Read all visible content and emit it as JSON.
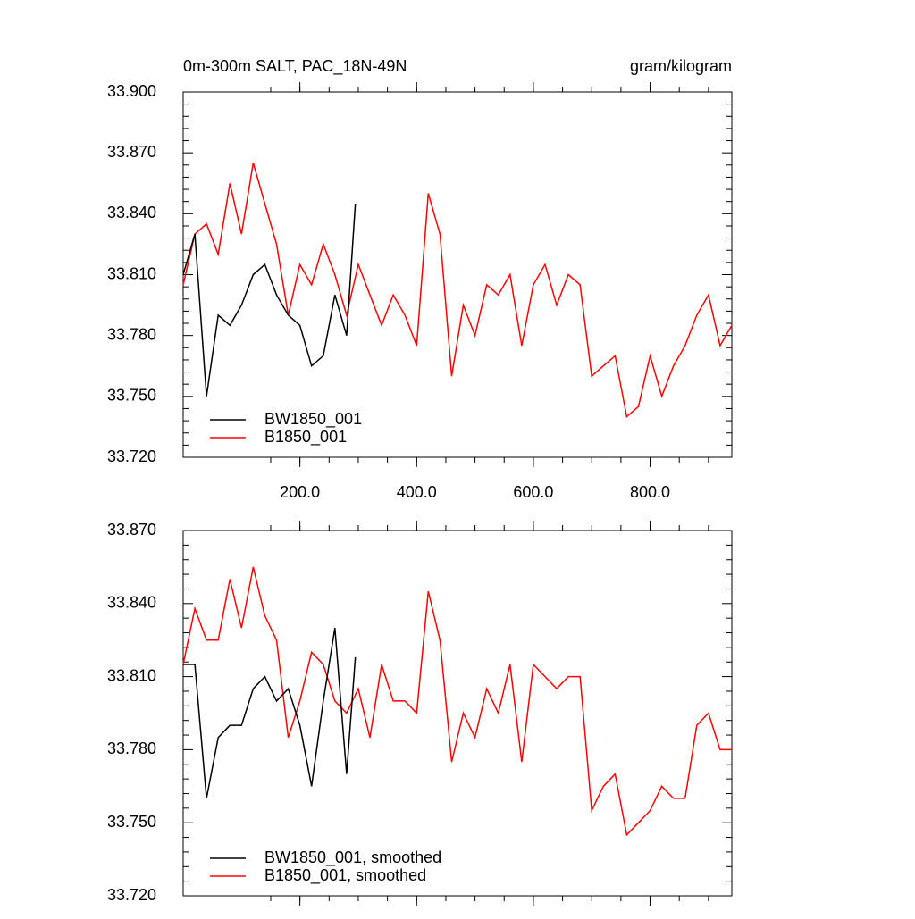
{
  "chart_data": [
    {
      "type": "line",
      "title": "0m-300m SALT, PAC_18N-49N",
      "units": "gram/kilogram",
      "xlim": [
        0,
        940
      ],
      "ylim": [
        33.72,
        33.9
      ],
      "xticks": [
        {
          "value": 200,
          "label": "200.0"
        },
        {
          "value": 400,
          "label": "400.0"
        },
        {
          "value": 600,
          "label": "600.0"
        },
        {
          "value": 800,
          "label": "800.0"
        }
      ],
      "yticks": [
        {
          "value": 33.72,
          "label": "33.720"
        },
        {
          "value": 33.75,
          "label": "33.750"
        },
        {
          "value": 33.78,
          "label": "33.780"
        },
        {
          "value": 33.81,
          "label": "33.810"
        },
        {
          "value": 33.84,
          "label": "33.840"
        },
        {
          "value": 33.87,
          "label": "33.870"
        },
        {
          "value": 33.9,
          "label": "33.900"
        }
      ],
      "legend": "lower left",
      "series": [
        {
          "name": "BW1850_001",
          "color": "#000000",
          "x": [
            0,
            20,
            40,
            60,
            80,
            100,
            120,
            140,
            160,
            180,
            200,
            220,
            240,
            260,
            280,
            295
          ],
          "values": [
            33.81,
            33.83,
            33.75,
            33.79,
            33.785,
            33.795,
            33.81,
            33.815,
            33.8,
            33.79,
            33.785,
            33.765,
            33.77,
            33.8,
            33.78,
            33.845
          ]
        },
        {
          "name": "B1850_001",
          "color": "#ff0000",
          "x": [
            0,
            20,
            40,
            60,
            80,
            100,
            120,
            140,
            160,
            180,
            200,
            220,
            240,
            260,
            280,
            300,
            320,
            340,
            360,
            380,
            400,
            420,
            440,
            460,
            480,
            500,
            520,
            540,
            560,
            580,
            600,
            620,
            640,
            660,
            680,
            700,
            720,
            740,
            760,
            780,
            800,
            820,
            840,
            860,
            880,
            900,
            920,
            940
          ],
          "values": [
            33.805,
            33.83,
            33.835,
            33.82,
            33.855,
            33.83,
            33.865,
            33.845,
            33.825,
            33.79,
            33.815,
            33.805,
            33.825,
            33.81,
            33.79,
            33.815,
            33.8,
            33.785,
            33.8,
            33.79,
            33.775,
            33.85,
            33.83,
            33.76,
            33.795,
            33.78,
            33.805,
            33.8,
            33.81,
            33.775,
            33.805,
            33.815,
            33.795,
            33.81,
            33.805,
            33.76,
            33.765,
            33.77,
            33.74,
            33.745,
            33.77,
            33.75,
            33.765,
            33.775,
            33.79,
            33.8,
            33.775,
            33.785
          ]
        }
      ]
    },
    {
      "type": "line",
      "xlim": [
        0,
        940
      ],
      "ylim": [
        33.72,
        33.87
      ],
      "yticks": [
        {
          "value": 33.72,
          "label": "33.720"
        },
        {
          "value": 33.75,
          "label": "33.750"
        },
        {
          "value": 33.78,
          "label": "33.780"
        },
        {
          "value": 33.81,
          "label": "33.810"
        },
        {
          "value": 33.84,
          "label": "33.840"
        },
        {
          "value": 33.87,
          "label": "33.870"
        }
      ],
      "legend": "lower left",
      "series": [
        {
          "name": "BW1850_001, smoothed",
          "color": "#000000",
          "x": [
            0,
            20,
            40,
            60,
            80,
            100,
            120,
            140,
            160,
            180,
            200,
            220,
            240,
            260,
            280,
            295
          ],
          "values": [
            33.815,
            33.815,
            33.76,
            33.785,
            33.79,
            33.79,
            33.805,
            33.81,
            33.8,
            33.805,
            33.79,
            33.765,
            33.8,
            33.83,
            33.77,
            33.818
          ]
        },
        {
          "name": "B1850_001, smoothed",
          "color": "#ff0000",
          "x": [
            0,
            20,
            40,
            60,
            80,
            100,
            120,
            140,
            160,
            180,
            200,
            220,
            240,
            260,
            280,
            300,
            320,
            340,
            360,
            380,
            400,
            420,
            440,
            460,
            480,
            500,
            520,
            540,
            560,
            580,
            600,
            620,
            640,
            660,
            680,
            700,
            720,
            740,
            760,
            780,
            800,
            820,
            840,
            860,
            880,
            900,
            920,
            940
          ],
          "values": [
            33.815,
            33.838,
            33.825,
            33.825,
            33.85,
            33.83,
            33.855,
            33.835,
            33.825,
            33.785,
            33.8,
            33.82,
            33.815,
            33.8,
            33.795,
            33.805,
            33.785,
            33.815,
            33.8,
            33.8,
            33.795,
            33.845,
            33.825,
            33.775,
            33.795,
            33.785,
            33.805,
            33.795,
            33.815,
            33.775,
            33.815,
            33.81,
            33.805,
            33.81,
            33.81,
            33.755,
            33.765,
            33.77,
            33.745,
            33.75,
            33.755,
            33.765,
            33.76,
            33.76,
            33.79,
            33.795,
            33.78,
            33.78
          ]
        }
      ]
    }
  ]
}
